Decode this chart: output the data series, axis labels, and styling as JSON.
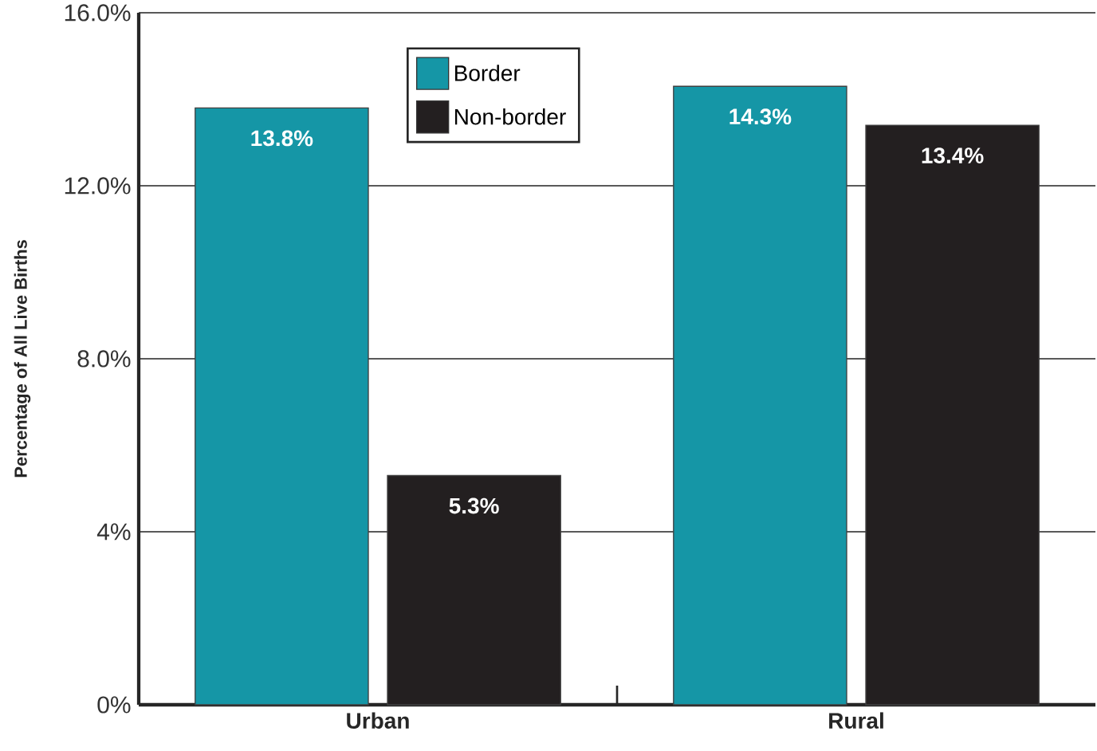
{
  "chart_data": {
    "type": "bar",
    "ylabel": "Percentage of All Live Births",
    "categories": [
      "Urban",
      "Rural"
    ],
    "series": [
      {
        "name": "Border",
        "color": "#1596a6",
        "values": [
          13.8,
          14.3
        ],
        "value_labels": [
          "13.8%",
          "14.3%"
        ]
      },
      {
        "name": "Non-border",
        "color": "#231f20",
        "values": [
          5.3,
          13.4
        ],
        "value_labels": [
          "5.3%",
          "13.4%"
        ]
      }
    ],
    "ylim": [
      0,
      16
    ],
    "yticks": [
      {
        "value": 0,
        "label": "0%"
      },
      {
        "value": 4,
        "label": "4%"
      },
      {
        "value": 8,
        "label": "8.0%"
      },
      {
        "value": 12,
        "label": "12.0%"
      },
      {
        "value": 16,
        "label": "16.0%"
      }
    ],
    "grid": "y",
    "legend": "top"
  }
}
